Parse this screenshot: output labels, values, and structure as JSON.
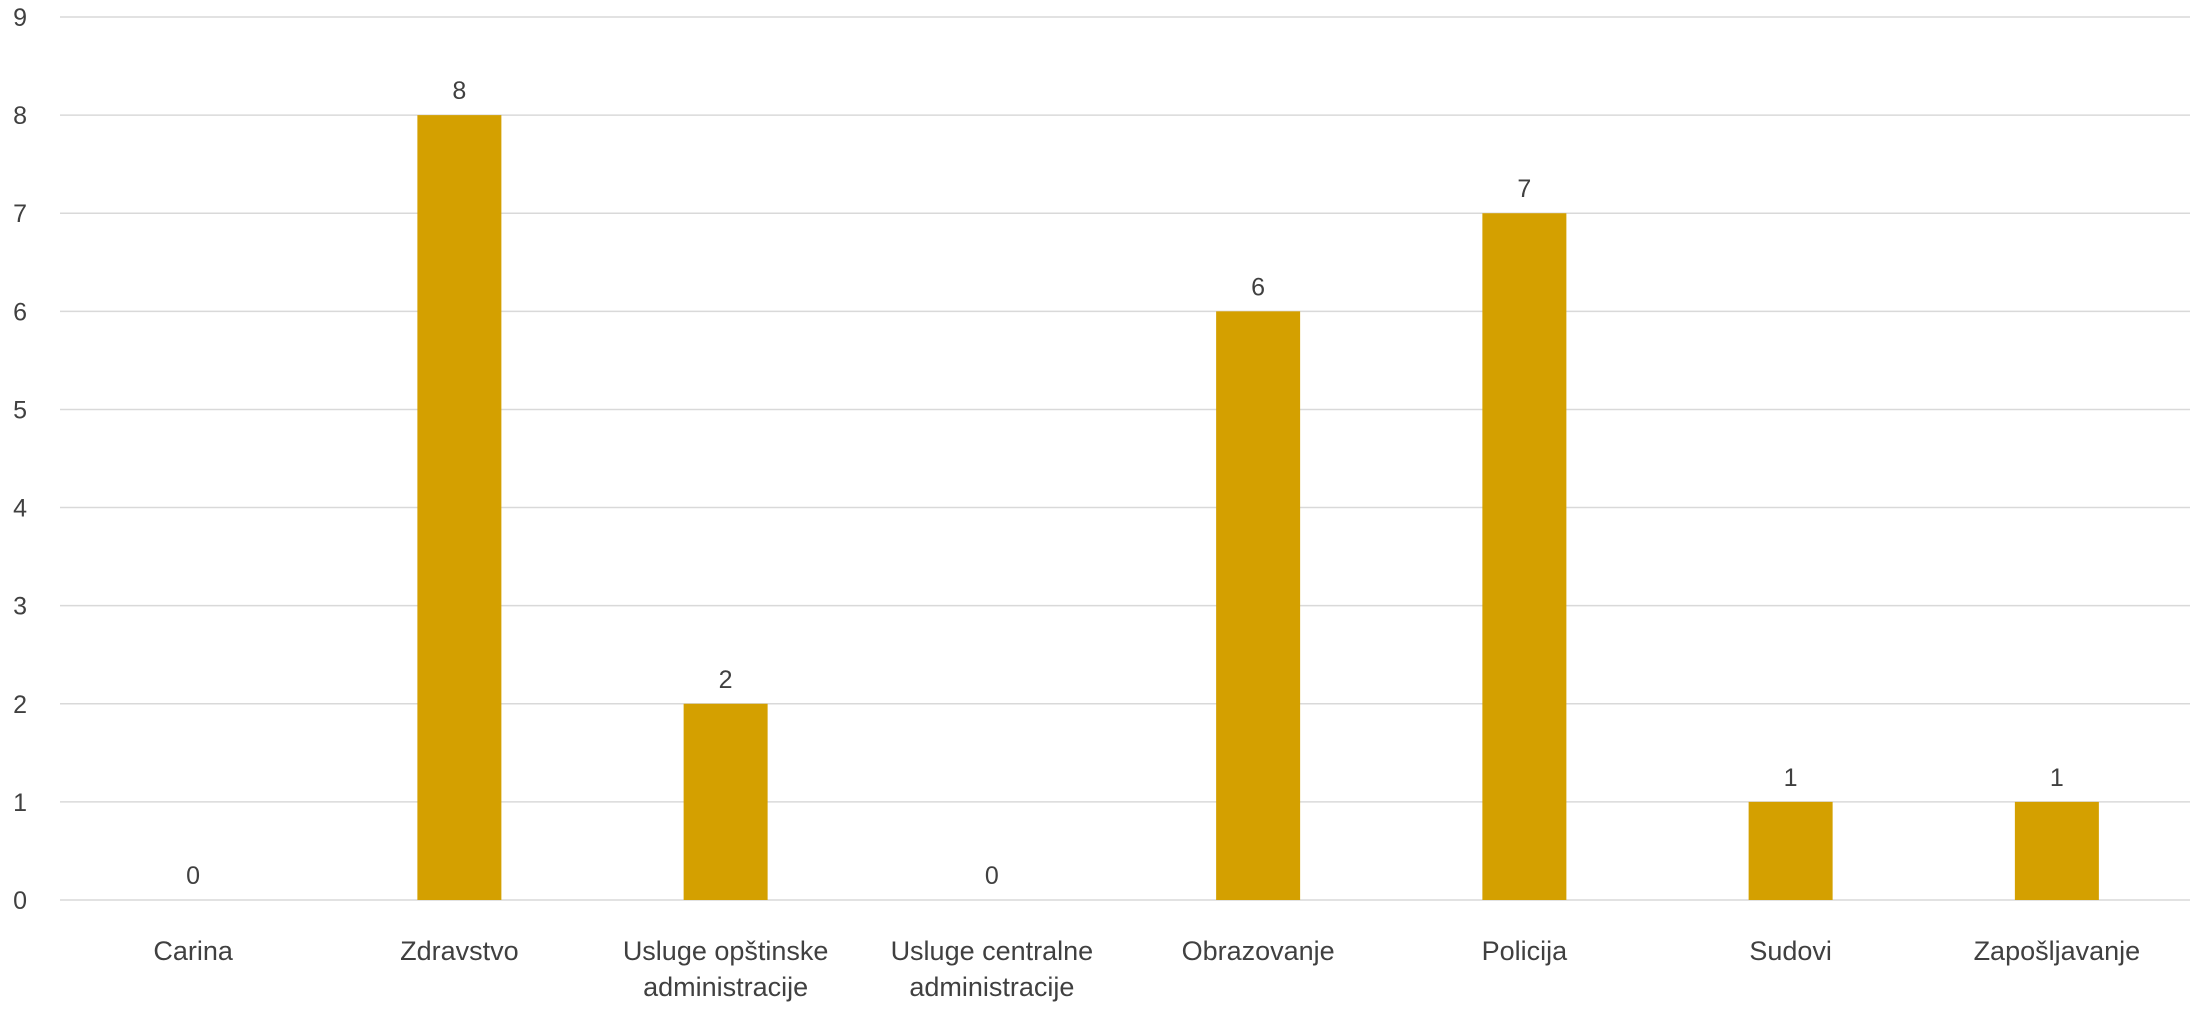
{
  "chart_data": {
    "type": "bar",
    "title": "",
    "xlabel": "",
    "ylabel": "",
    "ylim": [
      0,
      9
    ],
    "yticks": [
      0,
      1,
      2,
      3,
      4,
      5,
      6,
      7,
      8,
      9
    ],
    "grid": true,
    "legend": "none",
    "bar_color": "#D4A000",
    "gridline_color": "#D9D9D9",
    "text_color": "#404040",
    "categories": [
      "Carina",
      "Zdravstvo",
      "Usluge opštinske administracije",
      "Usluge centralne administracije",
      "Obrazovanje",
      "Policija",
      "Sudovi",
      "Zapošljavanje"
    ],
    "category_label_lines": [
      [
        "Carina"
      ],
      [
        "Zdravstvo"
      ],
      [
        "Usluge opštinske",
        "administracije"
      ],
      [
        "Usluge centralne",
        "administracije"
      ],
      [
        "Obrazovanje"
      ],
      [
        "Policija"
      ],
      [
        "Sudovi"
      ],
      [
        "Zapošljavanje"
      ]
    ],
    "values": [
      0,
      8,
      2,
      0,
      6,
      7,
      1,
      1
    ],
    "data_labels": [
      "0",
      "8",
      "2",
      "0",
      "6",
      "7",
      "1",
      "1"
    ]
  }
}
